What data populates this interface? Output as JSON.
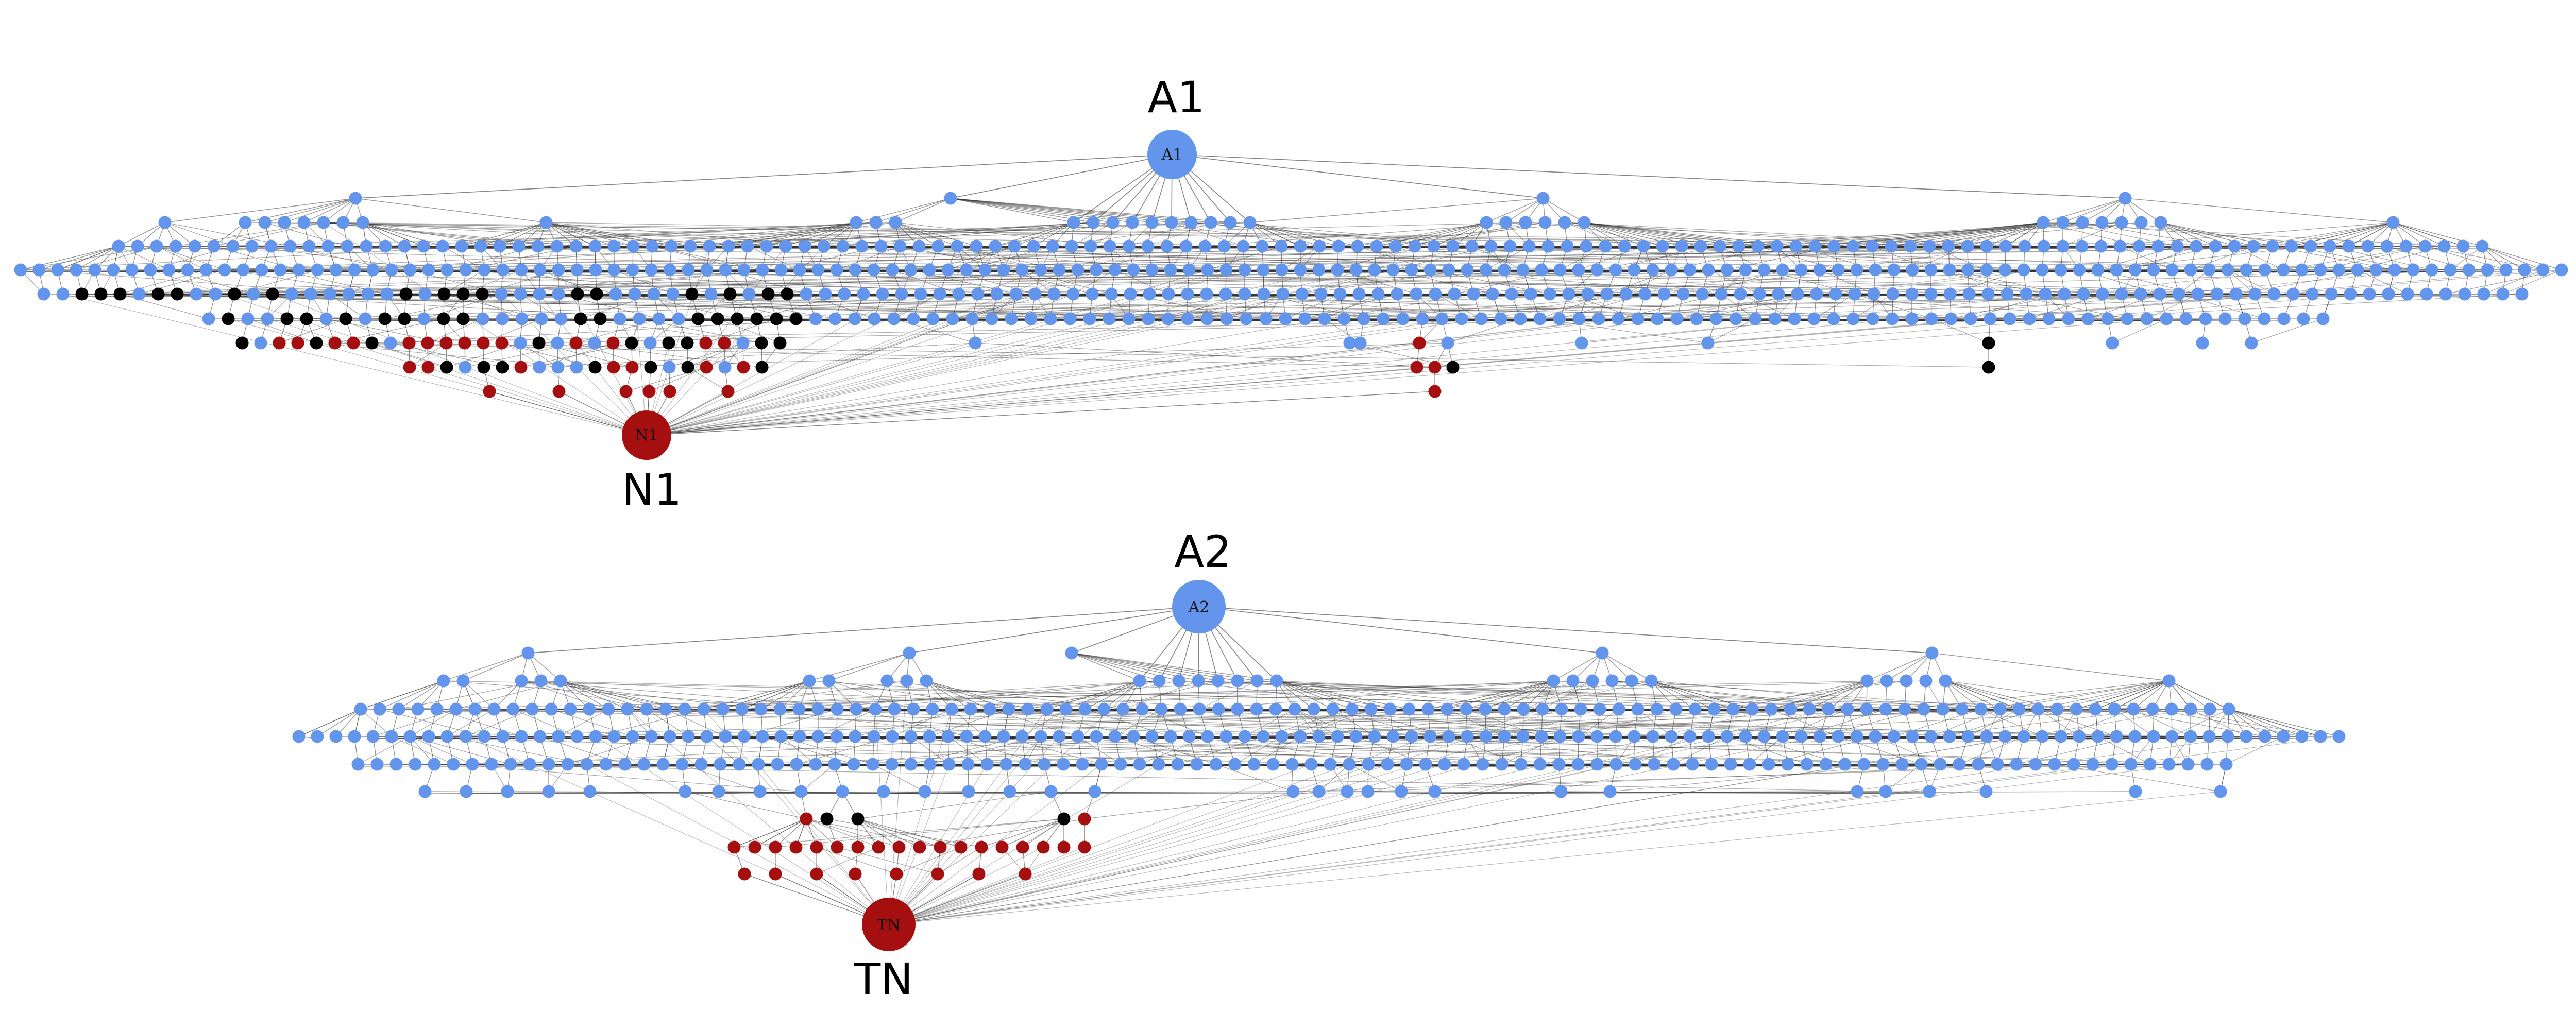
{
  "colors": {
    "blue": "#6495ed",
    "red": "#a50f0f",
    "black": "#000000",
    "edge": "#333333",
    "background": "#ffffff"
  },
  "graphs": [
    {
      "id": "g1",
      "root": {
        "label": "A1",
        "node_text": "A1",
        "color": "blue"
      },
      "target": {
        "label": "N1",
        "node_text": "N1",
        "color": "red"
      }
    },
    {
      "id": "g2",
      "root": {
        "label": "A2",
        "node_text": "A2",
        "color": "blue"
      },
      "target": {
        "label": "TN",
        "node_text": "TN",
        "color": "red"
      }
    }
  ]
}
